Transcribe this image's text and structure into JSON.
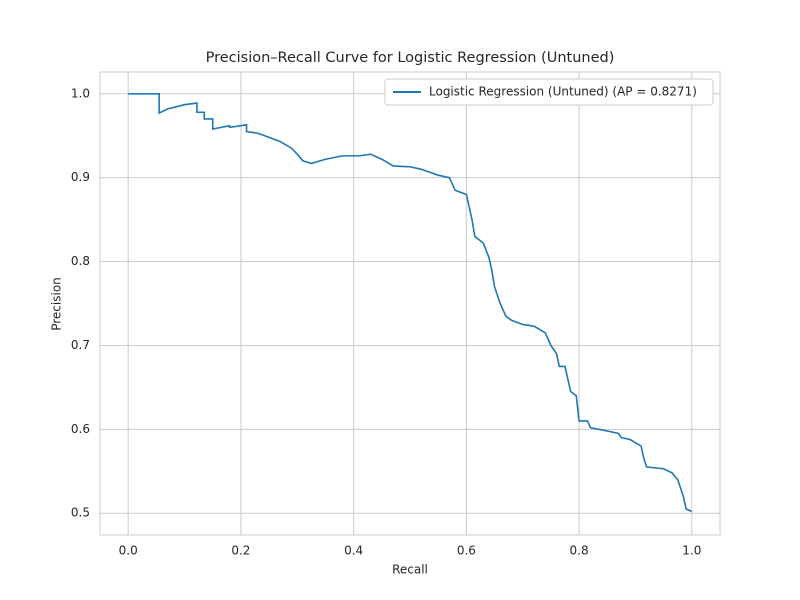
{
  "chart_data": {
    "type": "line",
    "title": "Precision–Recall Curve for Logistic Regression (Untuned)",
    "xlabel": "Recall",
    "ylabel": "Precision",
    "x": [
      0,
      0.055,
      0.055,
      0.07,
      0.1,
      0.122,
      0.122,
      0.135,
      0.135,
      0.15,
      0.15,
      0.18,
      0.18,
      0.21,
      0.21,
      0.23,
      0.25,
      0.27,
      0.29,
      0.3,
      0.31,
      0.325,
      0.35,
      0.38,
      0.41,
      0.43,
      0.45,
      0.47,
      0.5,
      0.52,
      0.55,
      0.57,
      0.58,
      0.6,
      0.605,
      0.61,
      0.615,
      0.63,
      0.64,
      0.645,
      0.65,
      0.66,
      0.67,
      0.68,
      0.7,
      0.72,
      0.74,
      0.75,
      0.76,
      0.765,
      0.775,
      0.78,
      0.785,
      0.795,
      0.8,
      0.815,
      0.82,
      0.85,
      0.87,
      0.875,
      0.89,
      0.91,
      0.915,
      0.92,
      0.95,
      0.965,
      0.975,
      0.985,
      0.99,
      1.0
    ],
    "series": [
      {
        "name": "Logistic Regression (Untuned) (AP = 0.8271)",
        "color": "#1f77b4",
        "values": [
          1.0,
          1.0,
          0.977,
          0.982,
          0.987,
          0.989,
          0.978,
          0.978,
          0.97,
          0.97,
          0.958,
          0.962,
          0.96,
          0.963,
          0.955,
          0.953,
          0.948,
          0.943,
          0.935,
          0.928,
          0.92,
          0.917,
          0.922,
          0.926,
          0.926,
          0.928,
          0.922,
          0.914,
          0.913,
          0.91,
          0.903,
          0.9,
          0.885,
          0.88,
          0.865,
          0.85,
          0.83,
          0.822,
          0.805,
          0.79,
          0.77,
          0.75,
          0.735,
          0.73,
          0.725,
          0.723,
          0.715,
          0.7,
          0.69,
          0.675,
          0.675,
          0.66,
          0.645,
          0.64,
          0.61,
          0.61,
          0.602,
          0.598,
          0.595,
          0.59,
          0.588,
          0.58,
          0.565,
          0.555,
          0.553,
          0.548,
          0.54,
          0.52,
          0.505,
          0.502
        ]
      }
    ],
    "xlim": [
      -0.05,
      1.05
    ],
    "ylim": [
      0.474,
      1.026
    ],
    "xticks": [
      {
        "value": 0,
        "label": "0.0"
      },
      0.2,
      0.4,
      0.6,
      0.8,
      {
        "value": 1,
        "label": "1.0"
      }
    ],
    "yticks": [
      0.5,
      0.6,
      0.7,
      0.8,
      0.9,
      {
        "value": 1,
        "label": "1.0"
      }
    ],
    "grid": true,
    "legend": "upper right"
  }
}
